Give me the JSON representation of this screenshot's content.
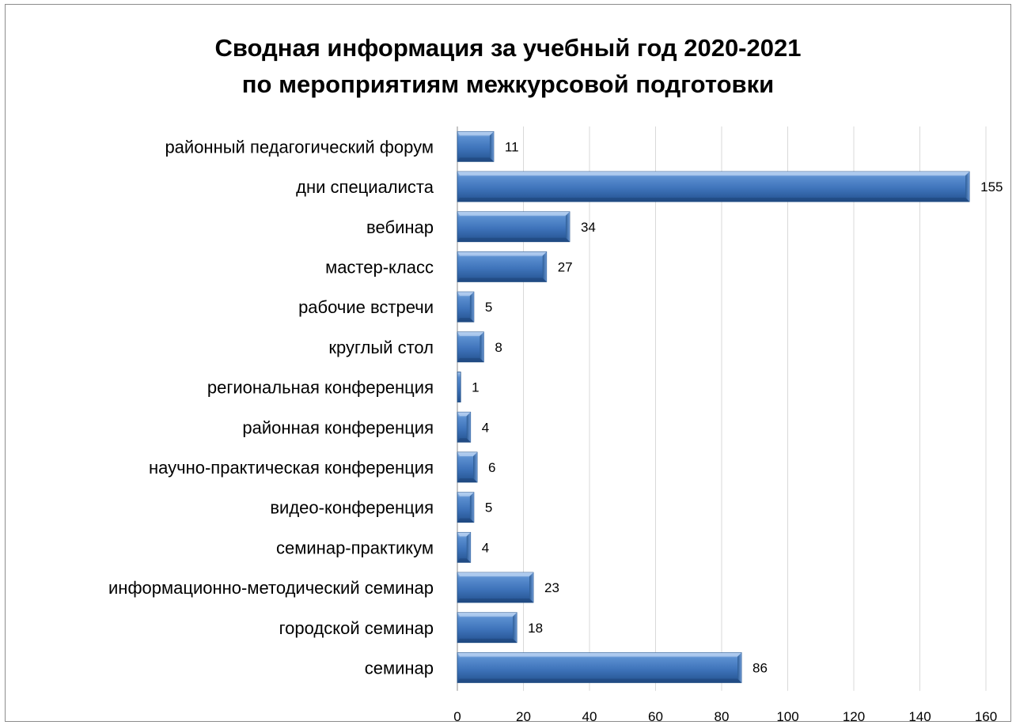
{
  "chart_data": {
    "type": "bar",
    "orientation": "horizontal",
    "title_lines": [
      "Сводная информация за учебный год 2020-2021",
      "по мероприятиям межкурсовой подготовки"
    ],
    "categories": [
      "районный педагогический форум",
      "дни специалиста",
      "вебинар",
      "мастер-класс",
      "рабочие встречи",
      "круглый стол",
      "региональная конференция",
      "районная конференция",
      "научно-практическая конференция",
      "видео-конференция",
      "семинар-практикум",
      "информационно-методический семинар",
      "городской семинар",
      "семинар"
    ],
    "values": [
      11,
      155,
      34,
      27,
      5,
      8,
      1,
      4,
      6,
      5,
      4,
      23,
      18,
      86
    ],
    "data_labels": [
      "11",
      "155",
      "34",
      "27",
      "5",
      "8",
      "1",
      "4",
      "6",
      "5",
      "4",
      "23",
      "18",
      "86"
    ],
    "xlim": [
      0,
      160
    ],
    "x_ticks": [
      "0",
      "20",
      "40",
      "60",
      "80",
      "100",
      "120",
      "140",
      "160"
    ],
    "grid": "vertical",
    "legend": "none",
    "colors": {
      "bar": "#4f81bd",
      "bar_dark": "#2a5a93",
      "bar_light": "#8fb4e3",
      "grid": "#d9d9d9"
    }
  }
}
